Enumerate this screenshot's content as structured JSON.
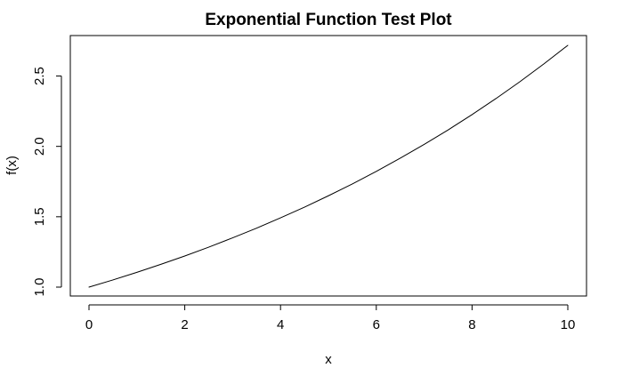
{
  "chart_data": {
    "type": "line",
    "title": "Exponential Function Test Plot",
    "xlabel": "x",
    "ylabel": "f(x)",
    "xlim": [
      0,
      10
    ],
    "ylim": [
      1.0,
      2.718
    ],
    "x_ticks": [
      0,
      2,
      4,
      6,
      8,
      10
    ],
    "y_ticks": [
      1.0,
      1.5,
      2.0,
      2.5
    ],
    "x_tick_labels": [
      "0",
      "2",
      "4",
      "6",
      "8",
      "10"
    ],
    "y_tick_labels": [
      "1.0",
      "1.5",
      "2.0",
      "2.5"
    ],
    "grid": false,
    "legend": "none",
    "series": [
      {
        "color": "#000000",
        "x": [
          0,
          0.5,
          1,
          1.5,
          2,
          2.5,
          3,
          3.5,
          4,
          4.5,
          5,
          5.5,
          6,
          6.5,
          7,
          7.5,
          8,
          8.5,
          9,
          9.5,
          10
        ],
        "y": [
          1.0,
          1.051,
          1.105,
          1.162,
          1.221,
          1.284,
          1.35,
          1.419,
          1.492,
          1.568,
          1.649,
          1.733,
          1.822,
          1.916,
          2.014,
          2.117,
          2.226,
          2.34,
          2.46,
          2.586,
          2.718
        ]
      }
    ]
  }
}
